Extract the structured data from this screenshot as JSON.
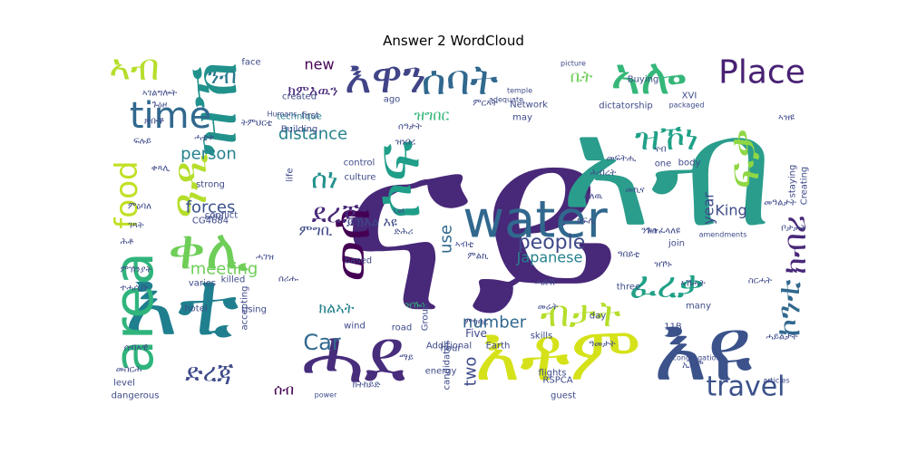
{
  "chart_data": {
    "type": "wordcloud",
    "title": "Answer 2 WordCloud",
    "palette": [
      "#440154",
      "#482878",
      "#3e4a89",
      "#31688e",
      "#26828e",
      "#1f9e89",
      "#35b779",
      "#6ece58",
      "#b5de2b",
      "#fde725"
    ],
    "words": [
      {
        "text": "ናይ",
        "color": "#482878"
      },
      {
        "text": "ኣብ",
        "color": "#2a9d8c"
      },
      {
        "text": "water",
        "color": "#31688e"
      },
      {
        "text": "እቶም",
        "color": "#d5e21a"
      },
      {
        "text": "እዩ",
        "color": "#3b528b"
      },
      {
        "text": "ሓደ",
        "color": "#472d7b"
      },
      {
        "text": "እቲ",
        "color": "#1f7f8e"
      },
      {
        "text": "ኣሎ",
        "color": "#35b779"
      },
      {
        "text": "እዋን",
        "color": "#414487"
      },
      {
        "text": "ዝኾነ",
        "color": "#1fa187"
      },
      {
        "text": "ሰባት",
        "color": "#31688e"
      },
      {
        "text": "ፍቃ",
        "color": "#8fd744"
      },
      {
        "text": "ዝኸ",
        "color": "#21918c"
      },
      {
        "text": "ዓዲ",
        "color": "#b5de2b"
      },
      {
        "text": "ቀሊ",
        "color": "#6ece58"
      },
      {
        "text": "ሶፍ",
        "color": "#1f9e89"
      },
      {
        "text": "ወሰ",
        "color": "#440154"
      },
      {
        "text": "area",
        "color": "#2fb47c"
      },
      {
        "text": "Place",
        "color": "#482173"
      },
      {
        "text": "time",
        "color": "#31688e"
      },
      {
        "text": "travel",
        "color": "#3b528b"
      },
      {
        "text": "ኣብ",
        "color": "#b5de2b"
      },
      {
        "text": "ኮንቲ",
        "color": "#31688e"
      },
      {
        "text": "ክብሪ",
        "color": "#482878"
      },
      {
        "text": "ድረጃ",
        "color": "#3e4a89"
      },
      {
        "text": "ፈረቃ",
        "color": "#1fa187"
      },
      {
        "text": "ደረጃ",
        "color": "#482878"
      },
      {
        "text": "ብታት",
        "color": "#b5de2b"
      },
      {
        "text": "ሰነ",
        "color": "#21918c"
      },
      {
        "text": "food",
        "color": "#c2df23"
      },
      {
        "text": "people",
        "color": "#3e4a89"
      },
      {
        "text": "Car",
        "color": "#31688e"
      },
      {
        "text": "meeting",
        "color": "#6ece58"
      },
      {
        "text": "person",
        "color": "#26828e"
      },
      {
        "text": "distance",
        "color": "#26828e"
      },
      {
        "text": "forces",
        "color": "#3b528b"
      },
      {
        "text": "number",
        "color": "#31688e"
      },
      {
        "text": "new",
        "color": "#440154"
      },
      {
        "text": "King",
        "color": "#3e4a89"
      },
      {
        "text": "year",
        "color": "#3e4a89"
      },
      {
        "text": "two",
        "color": "#3e4a89"
      },
      {
        "text": "use",
        "color": "#31688e"
      },
      {
        "text": "Japanese",
        "color": "#26828e"
      },
      {
        "text": "ክምእዉን",
        "color": "#482878"
      },
      {
        "text": "ምግቢ",
        "color": "#3e4a89"
      },
      {
        "text": "ዝግበር",
        "color": "#35b779"
      },
      {
        "text": "ክልኣት",
        "color": "#26828e"
      },
      {
        "text": "ንብ",
        "color": "#2a788e"
      },
      {
        "text": "ቤት",
        "color": "#6ece58"
      },
      {
        "text": "ሰብ",
        "color": "#440154"
      },
      {
        "text": "ይኽእል እዩ",
        "color": "#3e4a89"
      },
      {
        "text": "ዝዀነ",
        "color": "#35b779"
      },
      {
        "text": "Five",
        "color": "#3e4a89"
      },
      {
        "text": "dictatorship",
        "color": "#3e4a89"
      },
      {
        "text": "technique",
        "color": "#26828e"
      },
      {
        "text": "Building",
        "color": "#3e4a89"
      },
      {
        "text": "strong",
        "color": "#3e4a89"
      },
      {
        "text": "CG4684",
        "color": "#3e4a89"
      },
      {
        "text": "conflict",
        "color": "#3e4a89"
      },
      {
        "text": "control",
        "color": "#3e4a89"
      },
      {
        "text": "culture",
        "color": "#3e4a89"
      },
      {
        "text": "based",
        "color": "#3e4a89"
      },
      {
        "text": "wind",
        "color": "#3e4a89"
      },
      {
        "text": "road",
        "color": "#3e4a89"
      },
      {
        "text": "candidates",
        "color": "#3e4a89"
      },
      {
        "text": "hour",
        "color": "#3e4a89"
      },
      {
        "text": "energy",
        "color": "#3e4a89"
      },
      {
        "text": "Earth",
        "color": "#3e4a89"
      },
      {
        "text": "skills",
        "color": "#3e4a89"
      },
      {
        "text": "flights",
        "color": "#3e4a89"
      },
      {
        "text": "RSPCA",
        "color": "#3e4a89"
      },
      {
        "text": "guest",
        "color": "#3e4a89"
      },
      {
        "text": "join",
        "color": "#3e4a89"
      },
      {
        "text": "three",
        "color": "#3e4a89"
      },
      {
        "text": "many",
        "color": "#3e4a89"
      },
      {
        "text": "body",
        "color": "#3e4a89"
      },
      {
        "text": "one",
        "color": "#3e4a89"
      },
      {
        "text": "day",
        "color": "#3e4a89"
      },
      {
        "text": "Additional",
        "color": "#3e4a89"
      },
      {
        "text": "Group",
        "color": "#3e4a89"
      },
      {
        "text": "Using",
        "color": "#3e4a89"
      },
      {
        "text": "hotel",
        "color": "#3e4a89"
      },
      {
        "text": "level",
        "color": "#3e4a89"
      },
      {
        "text": "dangerous",
        "color": "#3e4a89"
      },
      {
        "text": "accepting",
        "color": "#3e4a89"
      },
      {
        "text": "killed",
        "color": "#3e4a89"
      },
      {
        "text": "varies",
        "color": "#3e4a89"
      },
      {
        "text": "life",
        "color": "#3e4a89"
      },
      {
        "text": "created",
        "color": "#3e4a89"
      },
      {
        "text": "first",
        "color": "#3e4a89"
      },
      {
        "text": "ago",
        "color": "#3e4a89"
      },
      {
        "text": "face",
        "color": "#3e4a89"
      },
      {
        "text": "Network",
        "color": "#3e4a89"
      },
      {
        "text": "may",
        "color": "#3e4a89"
      },
      {
        "text": "11B",
        "color": "#3e4a89"
      },
      {
        "text": "XVI",
        "color": "#3e4a89"
      },
      {
        "text": "staying",
        "color": "#3e4a89"
      },
      {
        "text": "Creating",
        "color": "#3e4a89"
      },
      {
        "text": "picture",
        "color": "#3e4a89"
      },
      {
        "text": "temple",
        "color": "#3e4a89"
      },
      {
        "text": "adequate",
        "color": "#3e4a89"
      },
      {
        "text": "Humans",
        "color": "#3e4a89"
      },
      {
        "text": "packaged",
        "color": "#3e4a89"
      },
      {
        "text": "Let",
        "color": "#3e4a89"
      },
      {
        "text": "power",
        "color": "#3e4a89"
      },
      {
        "text": "congregation",
        "color": "#3e4a89"
      },
      {
        "text": "articles",
        "color": "#3e4a89"
      },
      {
        "text": "amendments",
        "color": "#3e4a89"
      },
      {
        "text": "Buying",
        "color": "#3e4a89"
      },
      {
        "text": "መፍትሒ",
        "color": "#3e4a89"
      },
      {
        "text": "ምርኣት",
        "color": "#3e4a89"
      },
      {
        "text": "ዝነበረ",
        "color": "#3e4a89"
      },
      {
        "text": "ሓቲቱ",
        "color": "#3e4a89"
      },
      {
        "text": "ሰዓታት",
        "color": "#3e4a89"
      },
      {
        "text": "መዓስ",
        "color": "#3e4a89"
      },
      {
        "text": "ትምህርቲ",
        "color": "#3e4a89"
      },
      {
        "text": "ሰብኣዊ",
        "color": "#3e4a89"
      },
      {
        "text": "ክትከይድ",
        "color": "#3e4a89"
      },
      {
        "text": "ድሕሪ",
        "color": "#3e4a89"
      },
      {
        "text": "ኣብቲ",
        "color": "#3e4a89"
      },
      {
        "text": "ምልኪ",
        "color": "#3e4a89"
      },
      {
        "text": "ገጻት",
        "color": "#3e4a89"
      },
      {
        "text": "ሕቶ",
        "color": "#3e4a89"
      },
      {
        "text": "ምኽንያት",
        "color": "#3e4a89"
      },
      {
        "text": "ተሓሲቡ",
        "color": "#3e4a89"
      },
      {
        "text": "ዓመታት",
        "color": "#3e4a89"
      },
      {
        "text": "ስርሓት",
        "color": "#3e4a89"
      },
      {
        "text": "ሓይልታት",
        "color": "#3e4a89"
      },
      {
        "text": "መዓልታት",
        "color": "#3e4a89"
      },
      {
        "text": "ቦታታት",
        "color": "#3e4a89"
      },
      {
        "text": "ንጉስ",
        "color": "#3e4a89"
      },
      {
        "text": "ኣሽሓት",
        "color": "#3e4a89"
      },
      {
        "text": "መኪና",
        "color": "#3e4a89"
      },
      {
        "text": "ሕብረት",
        "color": "#3e4a89"
      },
      {
        "text": "ዝኾኑ",
        "color": "#3e4a89"
      },
      {
        "text": "ኢኦም",
        "color": "#3e4a89"
      },
      {
        "text": "ዝተፈላለዩ",
        "color": "#3e4a89"
      },
      {
        "text": "ናብ",
        "color": "#3e4a89"
      },
      {
        "text": "ኣለዉ",
        "color": "#3e4a89"
      },
      {
        "text": "ክፍሊ",
        "color": "#3e4a89"
      },
      {
        "text": "ዓበይቲ",
        "color": "#3e4a89"
      },
      {
        "text": "ሓድሽ",
        "color": "#3e4a89"
      },
      {
        "text": "መሬት",
        "color": "#3e4a89"
      },
      {
        "text": "ማይ",
        "color": "#3e4a89"
      },
      {
        "text": "ምግባር",
        "color": "#3e4a89"
      },
      {
        "text": "ሰሪሑ",
        "color": "#3e4a89"
      },
      {
        "text": "ሓገዝ",
        "color": "#3e4a89"
      },
      {
        "text": "መስርሕ",
        "color": "#3e4a89"
      },
      {
        "text": "ምዕባለ",
        "color": "#3e4a89"
      },
      {
        "text": "ኣገልግሎት",
        "color": "#3e4a89"
      },
      {
        "text": "ጉዕዞ",
        "color": "#3e4a89"
      },
      {
        "text": "ጽቡቕ",
        "color": "#3e4a89"
      },
      {
        "text": "ፍሉይ",
        "color": "#3e4a89"
      },
      {
        "text": "ቀጻሊ",
        "color": "#3e4a89"
      },
      {
        "text": "ኣዝዩ",
        "color": "#3e4a89"
      }
    ]
  }
}
